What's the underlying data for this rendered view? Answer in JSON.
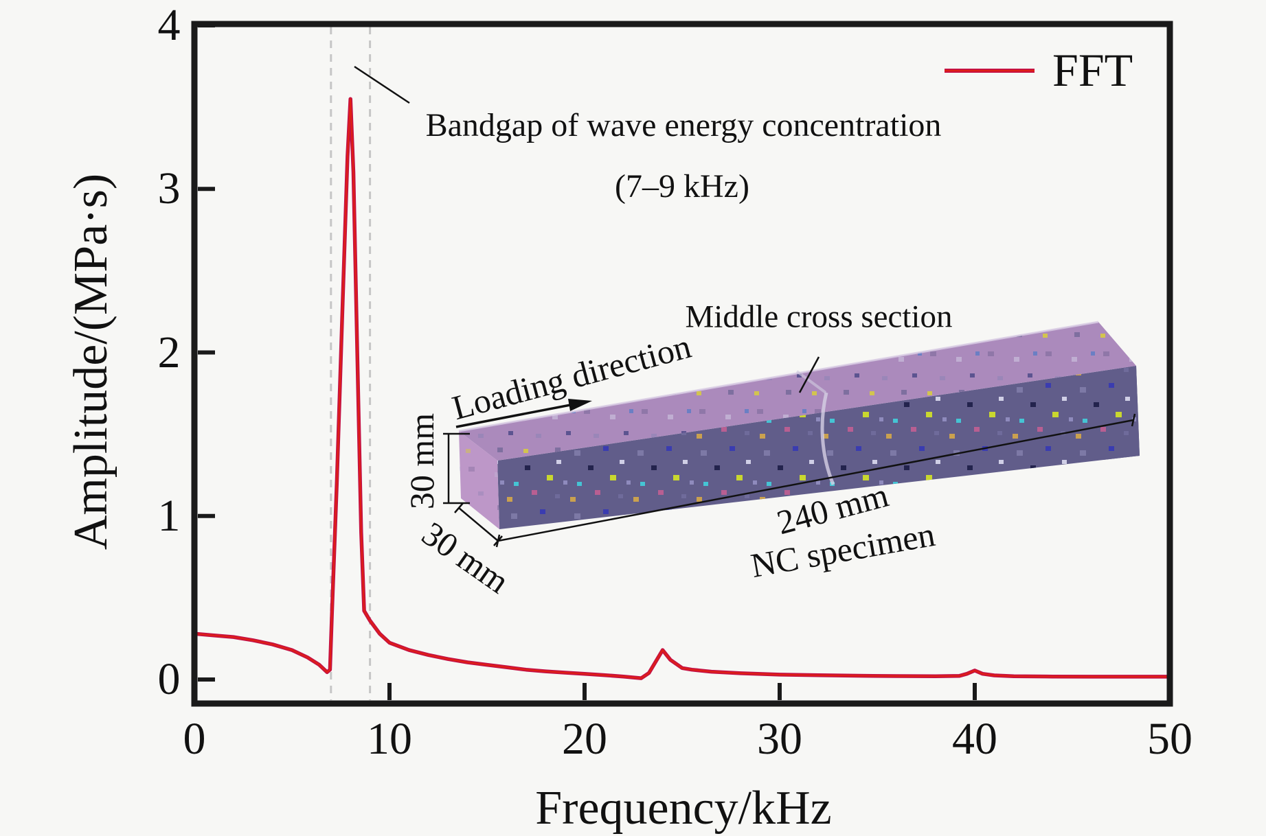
{
  "figure": {
    "background": "#f7f7f5",
    "axis_color": "#1a1a1a",
    "dashed_line_color": "#c6c6c6"
  },
  "chart_data": {
    "type": "line",
    "title": "",
    "xlabel": "Frequency/kHz",
    "ylabel": "Amplitude/(MPa·s)",
    "xlim": [
      0,
      50
    ],
    "ylim": [
      -0.15,
      4.02
    ],
    "xticks": [
      0,
      10,
      20,
      30,
      40,
      50
    ],
    "yticks": [
      0,
      1,
      2,
      3,
      4
    ],
    "grid": false,
    "legend_position": "top-right",
    "bandgap_lines_kHz": [
      7,
      9
    ],
    "series": [
      {
        "name": "FFT",
        "color": "#c41043",
        "color_core": "#e02014",
        "points": [
          [
            0,
            0.28
          ],
          [
            1,
            0.27
          ],
          [
            2,
            0.26
          ],
          [
            3,
            0.24
          ],
          [
            4,
            0.215
          ],
          [
            5,
            0.18
          ],
          [
            5.8,
            0.135
          ],
          [
            6.4,
            0.09
          ],
          [
            6.8,
            0.045
          ],
          [
            6.95,
            0.06
          ],
          [
            7.05,
            0.4
          ],
          [
            7.3,
            1.2
          ],
          [
            7.6,
            2.3
          ],
          [
            7.85,
            3.2
          ],
          [
            8.0,
            3.55
          ],
          [
            8.15,
            3.1
          ],
          [
            8.35,
            2.0
          ],
          [
            8.55,
            0.9
          ],
          [
            8.7,
            0.42
          ],
          [
            9.0,
            0.36
          ],
          [
            9.5,
            0.28
          ],
          [
            10,
            0.225
          ],
          [
            11,
            0.18
          ],
          [
            12,
            0.15
          ],
          [
            13,
            0.125
          ],
          [
            14,
            0.105
          ],
          [
            15,
            0.09
          ],
          [
            16,
            0.075
          ],
          [
            17,
            0.06
          ],
          [
            18,
            0.05
          ],
          [
            19,
            0.042
          ],
          [
            20,
            0.035
          ],
          [
            21,
            0.027
          ],
          [
            22,
            0.018
          ],
          [
            22.9,
            0.008
          ],
          [
            23.3,
            0.04
          ],
          [
            24,
            0.18
          ],
          [
            24.4,
            0.12
          ],
          [
            25,
            0.07
          ],
          [
            25.5,
            0.06
          ],
          [
            26.5,
            0.048
          ],
          [
            28,
            0.038
          ],
          [
            30,
            0.03
          ],
          [
            32,
            0.026
          ],
          [
            34,
            0.023
          ],
          [
            36,
            0.021
          ],
          [
            38,
            0.02
          ],
          [
            39.2,
            0.022
          ],
          [
            39.6,
            0.035
          ],
          [
            40,
            0.055
          ],
          [
            40.4,
            0.035
          ],
          [
            41,
            0.025
          ],
          [
            42,
            0.02
          ],
          [
            44,
            0.018
          ],
          [
            46,
            0.017
          ],
          [
            48,
            0.017
          ],
          [
            50,
            0.017
          ]
        ]
      }
    ],
    "annotation": {
      "line1": "Bandgap of wave energy concentration",
      "line2": "(7–9 kHz)"
    }
  },
  "legend": {
    "label": "FFT",
    "line_color": "#c41043"
  },
  "inset": {
    "labels": {
      "middle_cross_section": "Middle cross section",
      "loading_direction": "Loading direction",
      "height": "30 mm",
      "depth": "30 mm",
      "length": "240 mm",
      "specimen": "NC specimen"
    },
    "colors": {
      "top_face": "#ab8abc",
      "front_face": "#615d8a",
      "left_end_face": "#bd97c8",
      "right_end_face": "#524e79"
    }
  }
}
